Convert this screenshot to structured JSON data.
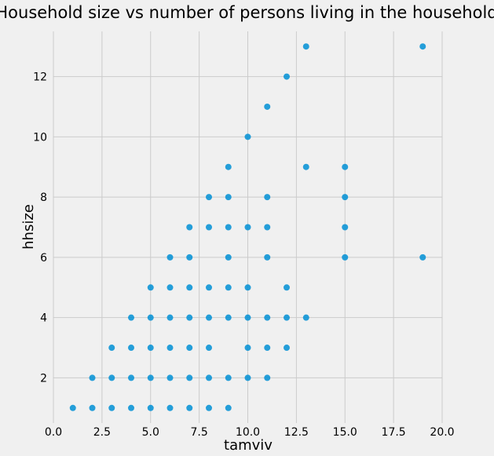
{
  "chart_data": {
    "type": "scatter",
    "title": "Household size vs number of persons living in the household",
    "xlabel": "tamviv",
    "ylabel": "hhsize",
    "xlim": [
      0,
      20
    ],
    "ylim": [
      0.5,
      13.5
    ],
    "xticks": [
      "0.0",
      "2.5",
      "5.0",
      "7.5",
      "10.0",
      "12.5",
      "15.0",
      "17.5",
      "20.0"
    ],
    "yticks": [
      "2",
      "4",
      "6",
      "8",
      "10",
      "12"
    ],
    "grid": true,
    "marker_color": "#008fd5",
    "points": [
      [
        1,
        1
      ],
      [
        2,
        1
      ],
      [
        2,
        2
      ],
      [
        3,
        1
      ],
      [
        3,
        2
      ],
      [
        3,
        3
      ],
      [
        4,
        1
      ],
      [
        4,
        2
      ],
      [
        4,
        3
      ],
      [
        4,
        4
      ],
      [
        5,
        1
      ],
      [
        5,
        2
      ],
      [
        5,
        3
      ],
      [
        5,
        4
      ],
      [
        5,
        5
      ],
      [
        6,
        1
      ],
      [
        6,
        2
      ],
      [
        6,
        3
      ],
      [
        6,
        4
      ],
      [
        6,
        5
      ],
      [
        6,
        6
      ],
      [
        7,
        1
      ],
      [
        7,
        2
      ],
      [
        7,
        3
      ],
      [
        7,
        4
      ],
      [
        7,
        5
      ],
      [
        7,
        6
      ],
      [
        7,
        7
      ],
      [
        8,
        1
      ],
      [
        8,
        2
      ],
      [
        8,
        3
      ],
      [
        8,
        4
      ],
      [
        8,
        5
      ],
      [
        8,
        7
      ],
      [
        8,
        8
      ],
      [
        9,
        1
      ],
      [
        9,
        2
      ],
      [
        9,
        4
      ],
      [
        9,
        5
      ],
      [
        9,
        6
      ],
      [
        9,
        7
      ],
      [
        9,
        8
      ],
      [
        9,
        9
      ],
      [
        10,
        2
      ],
      [
        10,
        3
      ],
      [
        10,
        4
      ],
      [
        10,
        5
      ],
      [
        10,
        7
      ],
      [
        10,
        10
      ],
      [
        11,
        2
      ],
      [
        11,
        3
      ],
      [
        11,
        4
      ],
      [
        11,
        6
      ],
      [
        11,
        7
      ],
      [
        11,
        8
      ],
      [
        11,
        11
      ],
      [
        12,
        3
      ],
      [
        12,
        4
      ],
      [
        12,
        5
      ],
      [
        12,
        12
      ],
      [
        13,
        4
      ],
      [
        13,
        9
      ],
      [
        13,
        13
      ],
      [
        15,
        6
      ],
      [
        15,
        7
      ],
      [
        15,
        8
      ],
      [
        15,
        9
      ],
      [
        19,
        6
      ],
      [
        19,
        13
      ]
    ]
  }
}
